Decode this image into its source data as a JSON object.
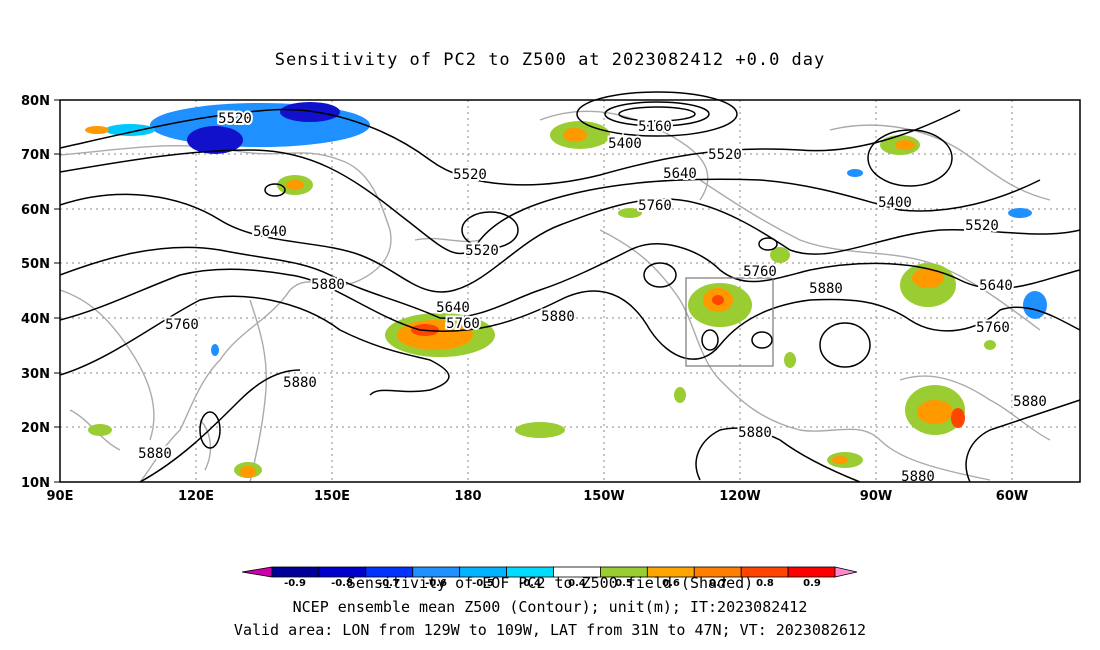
{
  "title": "Sensitivity of PC2 to Z500 at 2023082412 +0.0 day",
  "map": {
    "lat_ticks": [
      "80N",
      "70N",
      "60N",
      "50N",
      "40N",
      "30N",
      "20N",
      "10N"
    ],
    "lon_ticks": [
      "90E",
      "120E",
      "150E",
      "180",
      "150W",
      "120W",
      "90W",
      "60W"
    ],
    "contour_labels": [
      "5160",
      "5400",
      "5520",
      "5640",
      "5760",
      "5880"
    ],
    "shading_colors": {
      "strong_negative": "#1111cc",
      "negative": "#1e90ff",
      "weak_negative": "#00c8ff",
      "weak_positive": "#9acd32",
      "positive": "#ff9900",
      "strong_positive": "#ff4500"
    },
    "valid_box": "129W-109W, 31N-47N"
  },
  "colorbar": {
    "labels": [
      "-0.9",
      "-0.8",
      "-0.7",
      "-0.6",
      "-0.5",
      "-0.4",
      "0.4",
      "0.5",
      "0.6",
      "0.7",
      "0.8",
      "0.9"
    ],
    "colors": [
      "#cc00aa",
      "#000099",
      "#0000cc",
      "#0033ff",
      "#1e90ff",
      "#00b4ff",
      "#00dcff",
      "#ffffff",
      "#9acd32",
      "#ffa500",
      "#ff7f00",
      "#ff4500",
      "#ff0000",
      "#ff88cc"
    ]
  },
  "captions": {
    "line1": "Sensitivity of EOF PC2 to Z500 field (Shaded)",
    "line2": "NCEP ensemble mean Z500 (Contour); unit(m); IT:2023082412",
    "line3": "Valid area: LON from 129W to 109W, LAT from 31N to 47N; VT: 2023082612"
  }
}
